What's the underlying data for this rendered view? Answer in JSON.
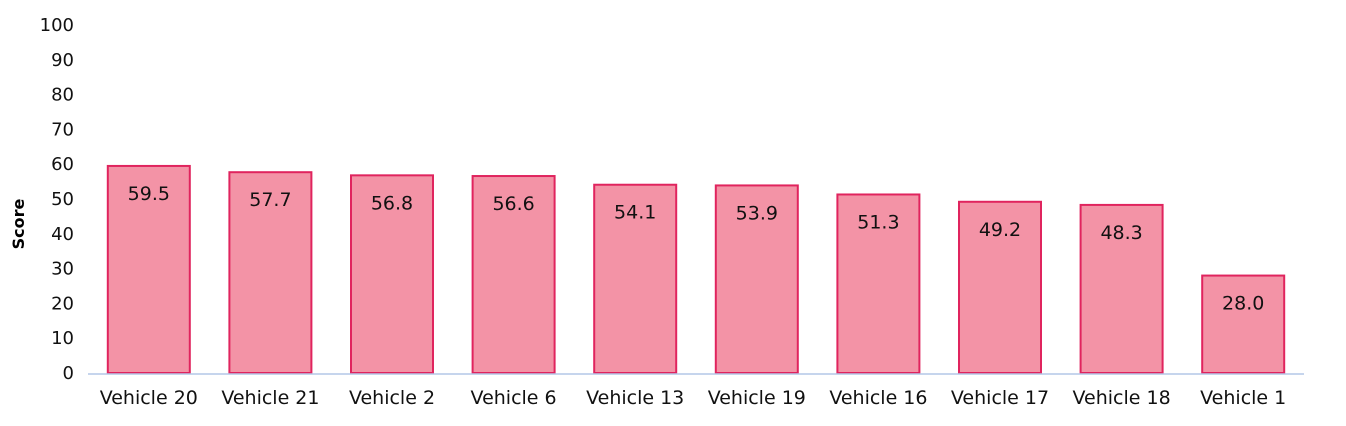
{
  "chart_data": {
    "type": "bar",
    "title": "",
    "xlabel": "",
    "ylabel": "Score",
    "ylim": [
      0,
      100
    ],
    "yticks": [
      0,
      10,
      20,
      30,
      40,
      50,
      60,
      70,
      80,
      90,
      100
    ],
    "categories": [
      "Vehicle 20",
      "Vehicle 21",
      "Vehicle 2",
      "Vehicle 6",
      "Vehicle 13",
      "Vehicle 19",
      "Vehicle 16",
      "Vehicle 17",
      "Vehicle 18",
      "Vehicle 1"
    ],
    "values": [
      59.5,
      57.7,
      56.8,
      56.6,
      54.1,
      53.9,
      51.3,
      49.2,
      48.3,
      28.0
    ],
    "data_labels": [
      "59.5",
      "57.7",
      "56.8",
      "56.6",
      "54.1",
      "53.9",
      "51.3",
      "49.2",
      "48.3",
      "28.0"
    ],
    "grid": false,
    "legend": "none",
    "colors": {
      "bar_fill": "#f393a6",
      "bar_stroke": "#e0245e",
      "axis_line": "#b4c7e7",
      "text": "#111111"
    }
  }
}
